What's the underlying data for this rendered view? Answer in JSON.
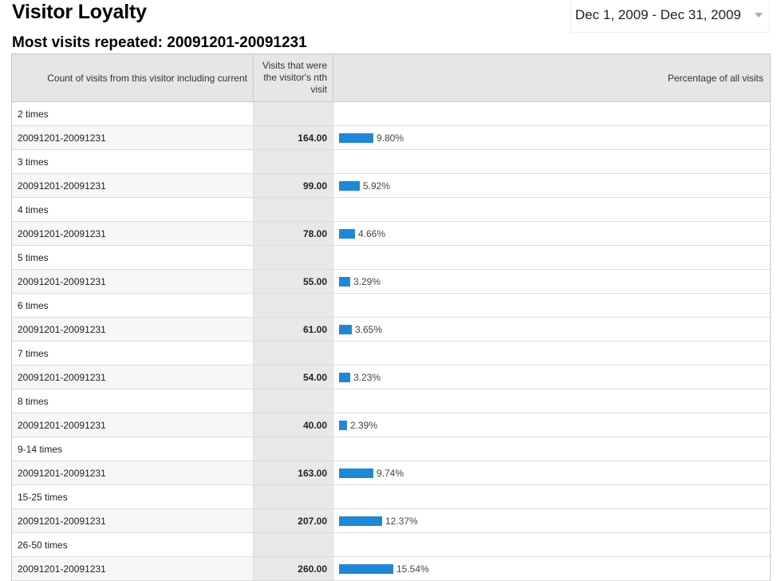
{
  "header": {
    "title": "Visitor Loyalty",
    "date_range": "Dec 1, 2009 - Dec 31, 2009",
    "report_title": "Most visits repeated: 20091201-20091231"
  },
  "table": {
    "columns": [
      "Count of visits from this visitor including current",
      "Visits that were the visitor's nth visit",
      "Percentage of all visits"
    ],
    "bar_color": "#1e88d8",
    "groups": [
      {
        "label": "2 times",
        "period": "20091201-20091231",
        "visits": "164.00",
        "percentage": "9.80%",
        "pct_value": 9.8
      },
      {
        "label": "3 times",
        "period": "20091201-20091231",
        "visits": "99.00",
        "percentage": "5.92%",
        "pct_value": 5.92
      },
      {
        "label": "4 times",
        "period": "20091201-20091231",
        "visits": "78.00",
        "percentage": "4.66%",
        "pct_value": 4.66
      },
      {
        "label": "5 times",
        "period": "20091201-20091231",
        "visits": "55.00",
        "percentage": "3.29%",
        "pct_value": 3.29
      },
      {
        "label": "6 times",
        "period": "20091201-20091231",
        "visits": "61.00",
        "percentage": "3.65%",
        "pct_value": 3.65
      },
      {
        "label": "7 times",
        "period": "20091201-20091231",
        "visits": "54.00",
        "percentage": "3.23%",
        "pct_value": 3.23
      },
      {
        "label": "8 times",
        "period": "20091201-20091231",
        "visits": "40.00",
        "percentage": "2.39%",
        "pct_value": 2.39
      },
      {
        "label": "9-14 times",
        "period": "20091201-20091231",
        "visits": "163.00",
        "percentage": "9.74%",
        "pct_value": 9.74
      },
      {
        "label": "15-25 times",
        "period": "20091201-20091231",
        "visits": "207.00",
        "percentage": "12.37%",
        "pct_value": 12.37
      },
      {
        "label": "26-50 times",
        "period": "20091201-20091231",
        "visits": "260.00",
        "percentage": "15.54%",
        "pct_value": 15.54
      }
    ]
  }
}
